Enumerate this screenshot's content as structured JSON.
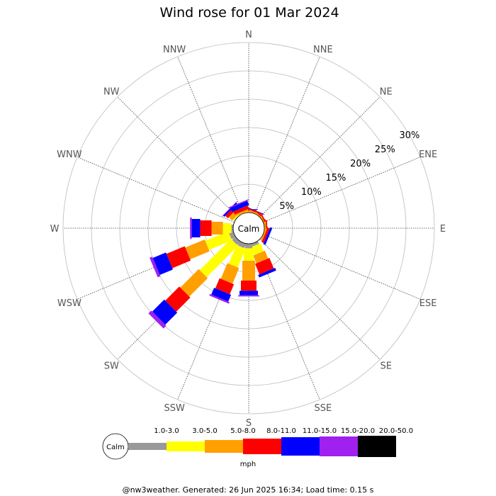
{
  "chart_data": {
    "type": "wind-rose",
    "title": "Wind rose for 01 Mar 2024",
    "directions": [
      "N",
      "NNE",
      "NE",
      "ENE",
      "E",
      "ESE",
      "SE",
      "SSE",
      "S",
      "SSW",
      "SW",
      "WSW",
      "W",
      "WNW",
      "NW",
      "NNW"
    ],
    "radial_ticks": [
      5,
      10,
      15,
      20,
      25,
      30
    ],
    "radial_tick_labels": [
      "5%",
      "10%",
      "15%",
      "20%",
      "25%",
      "30%"
    ],
    "rmax_percent": 30,
    "calm_label": "Calm",
    "unit_label": "mph",
    "speed_bins": [
      {
        "label": "1.0-3.0",
        "color": "#999999"
      },
      {
        "label": "3.0-5.0",
        "color": "#ffff00"
      },
      {
        "label": "5.0-8.0",
        "color": "#ffa000"
      },
      {
        "label": "8.0-11.0",
        "color": "#ff0000"
      },
      {
        "label": "11.0-15.0",
        "color": "#0000ff"
      },
      {
        "label": "15.0-20.0",
        "color": "#a020f0"
      },
      {
        "label": "20.0-50.0",
        "color": "#000000"
      }
    ],
    "series": [
      {
        "direction": "N",
        "values": [
          0,
          0,
          0.3,
          0.2,
          0.1,
          0,
          0
        ]
      },
      {
        "direction": "NNE",
        "values": [
          0,
          0,
          0.3,
          0.2,
          0.1,
          0,
          0
        ]
      },
      {
        "direction": "NE",
        "values": [
          0,
          0,
          0.2,
          0.2,
          0,
          0,
          0
        ]
      },
      {
        "direction": "ENE",
        "values": [
          0,
          0,
          0.2,
          0.2,
          0,
          0,
          0
        ]
      },
      {
        "direction": "E",
        "values": [
          0,
          0,
          0.3,
          0.2,
          0,
          0,
          0
        ]
      },
      {
        "direction": "ESE",
        "values": [
          0,
          0,
          0.3,
          0.4,
          0.4,
          0,
          0
        ]
      },
      {
        "direction": "SE",
        "values": [
          0,
          0,
          0,
          0,
          0,
          0,
          0
        ]
      },
      {
        "direction": "SSE",
        "values": [
          0.5,
          1.5,
          1.5,
          2.0,
          0.5,
          0,
          0
        ]
      },
      {
        "direction": "S",
        "values": [
          0.8,
          2.2,
          3.5,
          1.8,
          0.8,
          0.2,
          0
        ]
      },
      {
        "direction": "SSW",
        "values": [
          0.8,
          3.6,
          3.0,
          1.9,
          1.3,
          0.3,
          0
        ]
      },
      {
        "direction": "SW",
        "values": [
          0.8,
          7.8,
          4.6,
          3.5,
          3.0,
          0.7,
          0
        ]
      },
      {
        "direction": "WSW",
        "values": [
          0.8,
          4.4,
          3.7,
          3.5,
          2.5,
          0.5,
          0
        ]
      },
      {
        "direction": "W",
        "values": [
          0.3,
          1.5,
          2.0,
          2.0,
          1.5,
          0.3,
          0
        ]
      },
      {
        "direction": "WNW",
        "values": [
          0,
          0,
          0,
          0,
          0,
          0,
          0
        ]
      },
      {
        "direction": "NW",
        "values": [
          0,
          0.3,
          0.8,
          0.6,
          0.3,
          0.1,
          0
        ]
      },
      {
        "direction": "NNW",
        "values": [
          0,
          0.1,
          0.3,
          0.6,
          0.8,
          0.2,
          0
        ]
      }
    ]
  },
  "footer": "@nw3weather. Generated: 26 Jun 2025 16:34; Load time: 0.15 s"
}
